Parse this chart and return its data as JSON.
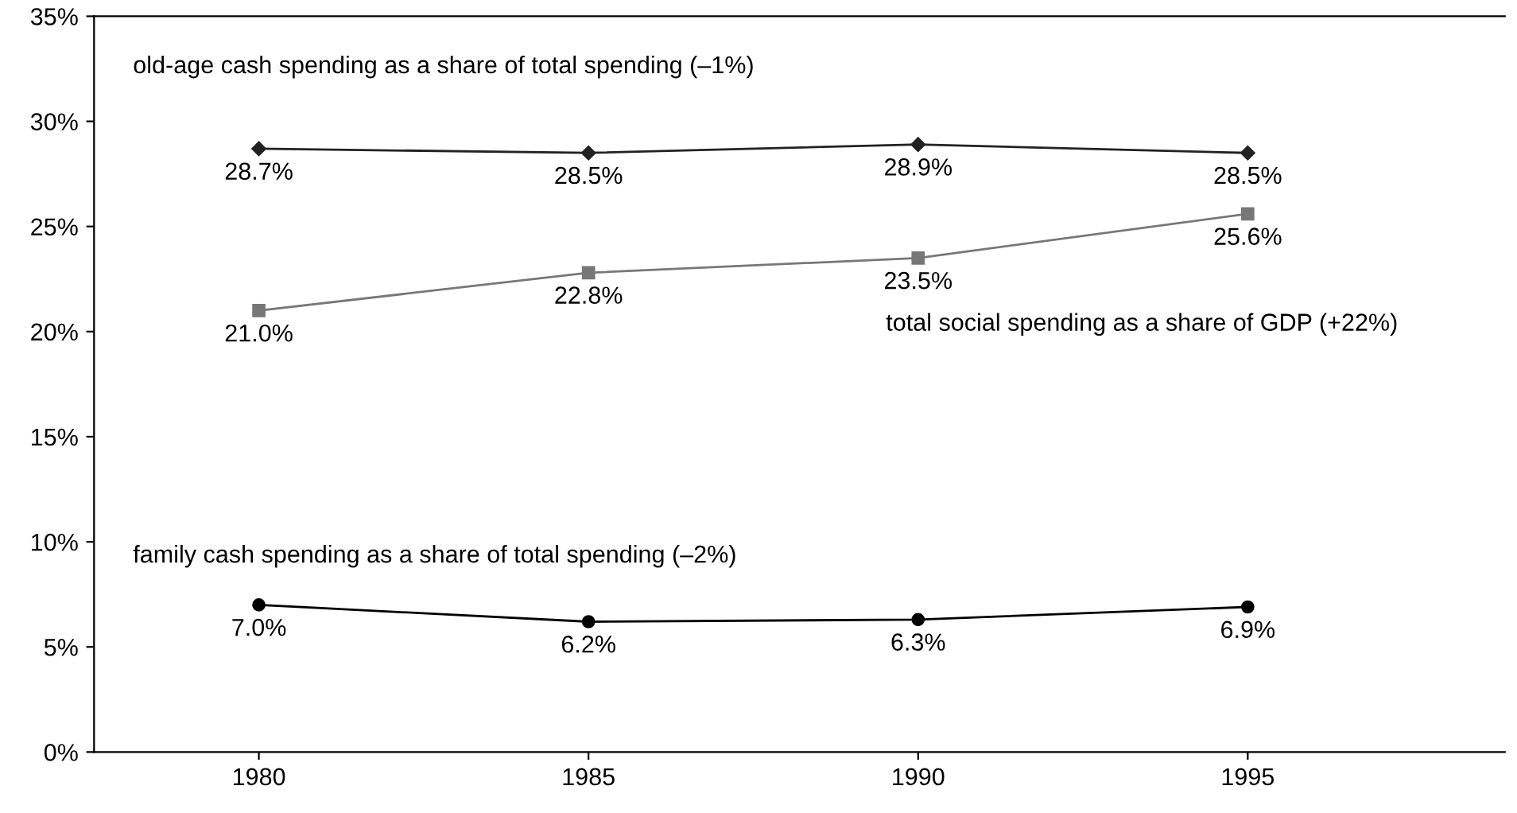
{
  "chart_data": {
    "type": "line",
    "categories": [
      "1980",
      "1985",
      "1990",
      "1995"
    ],
    "series": [
      {
        "name": "old-age cash spending as a share of total spending (–1%)",
        "color": "#222222",
        "marker": "diamond",
        "values": [
          28.7,
          28.5,
          28.9,
          28.5
        ]
      },
      {
        "name": "total social spending as a share of GDP (+22%)",
        "color": "#777777",
        "marker": "square",
        "values": [
          21.0,
          22.8,
          23.5,
          25.6
        ]
      },
      {
        "name": "family cash spending as a share of total spending (–2%)",
        "color": "#000000",
        "marker": "circle",
        "values": [
          7.0,
          6.2,
          6.3,
          6.9
        ]
      }
    ],
    "ylim": [
      0,
      35
    ],
    "yticks": [
      {
        "value": 0,
        "label": "0%"
      },
      {
        "value": 5,
        "label": "5%"
      },
      {
        "value": 10,
        "label": "10%"
      },
      {
        "value": 15,
        "label": "15%"
      },
      {
        "value": 20,
        "label": "20%"
      },
      {
        "value": 25,
        "label": "25%"
      },
      {
        "value": 30,
        "label": "30%"
      },
      {
        "value": 35,
        "label": "35%"
      }
    ],
    "value_labels": [
      [
        "28.7%",
        "28.5%",
        "28.9%",
        "28.5%"
      ],
      [
        "21.0%",
        "22.8%",
        "23.5%",
        "25.6%"
      ],
      [
        "7.0%",
        "6.2%",
        "6.3%",
        "6.9%"
      ]
    ],
    "grid": false,
    "legend": false,
    "line_style": "solid"
  }
}
